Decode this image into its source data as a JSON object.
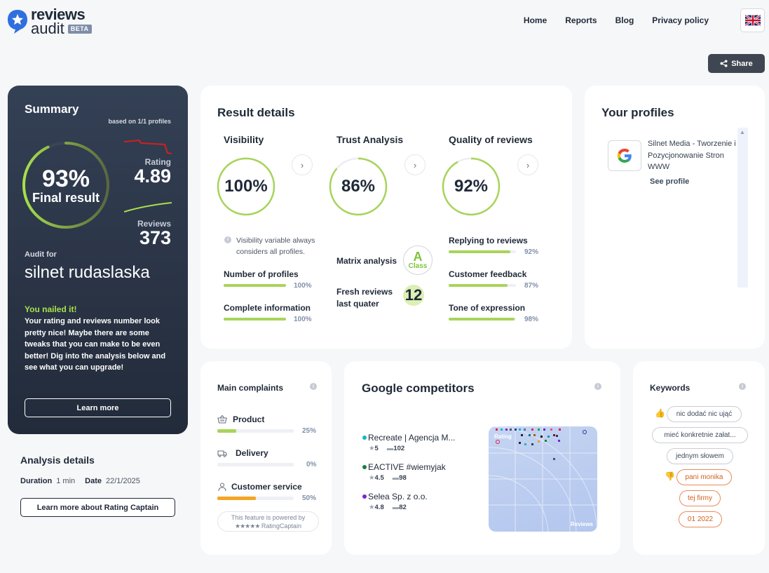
{
  "header": {
    "logo_line1": "reviews",
    "logo_line2": "audit",
    "beta": "BETA",
    "nav": [
      "Home",
      "Reports",
      "Blog",
      "Privacy policy"
    ],
    "share": "Share"
  },
  "summary": {
    "title": "Summary",
    "based_on": "based on 1/1 profiles",
    "final_percent": "93%",
    "final_label": "Final result",
    "final_value": 0.93,
    "rating_label": "Rating",
    "rating_value": "4.89",
    "reviews_label": "Reviews",
    "reviews_value": "373",
    "audit_for_label": "Audit for",
    "audit_name": "silnet rudaslaska",
    "nailed_title": "You nailed it!",
    "nailed_desc": "Your rating and reviews number look pretty nice! Maybe there are some tweaks that you can make to be even better! Dig into the analysis below and see what you can upgrade!",
    "learn_more": "Learn more"
  },
  "analysis": {
    "title": "Analysis details",
    "duration_label": "Duration",
    "duration_value": "1 min",
    "date_label": "Date",
    "date_value": "22/1/2025",
    "button": "Learn more about Rating Captain"
  },
  "results": {
    "title": "Result details",
    "visibility": {
      "title": "Visibility",
      "percent": "100%",
      "value": 1.0,
      "note": "Visibility variable always considers all profiles.",
      "items": [
        {
          "label": "Number of profiles",
          "percent": "100%",
          "value": 1.0
        },
        {
          "label": "Complete information",
          "percent": "100%",
          "value": 1.0
        }
      ]
    },
    "trust": {
      "title": "Trust Analysis",
      "percent": "86%",
      "value": 0.86,
      "matrix_label": "Matrix analysis",
      "class_letter": "A",
      "class_word": "Class",
      "fresh_label_1": "Fresh reviews",
      "fresh_label_2": "last quater",
      "fresh_value": "12"
    },
    "quality": {
      "title": "Quality of reviews",
      "percent": "92%",
      "value": 0.92,
      "items": [
        {
          "label": "Replying to reviews",
          "percent": "92%",
          "value": 0.92
        },
        {
          "label": "Customer feedback",
          "percent": "87%",
          "value": 0.87
        },
        {
          "label": "Tone of expression",
          "percent": "98%",
          "value": 0.98
        }
      ]
    }
  },
  "profiles": {
    "title": "Your profiles",
    "items": [
      {
        "name": "Silnet Media - Tworzenie i Pozycjonowanie Stron WWW",
        "link": "See profile",
        "icon": "google-icon"
      }
    ]
  },
  "complaints": {
    "title": "Main complaints",
    "items": [
      {
        "label": "Product",
        "percent": "25%",
        "value": 0.25,
        "color": "#a8d45a",
        "icon": "basket-icon"
      },
      {
        "label": "Delivery",
        "percent": "0%",
        "value": 0,
        "color": "#a8d45a",
        "icon": "truck-icon"
      },
      {
        "label": "Customer service",
        "percent": "50%",
        "value": 0.5,
        "color": "#f5a524",
        "icon": "person-icon"
      }
    ],
    "powered_1": "This feature is powered by",
    "powered_2": "RatingCaptain"
  },
  "competitors": {
    "title": "Google competitors",
    "items": [
      {
        "name": "Recreate | Agencja M...",
        "rating": "5",
        "reviews": "102",
        "color": "#14b8c4"
      },
      {
        "name": "EACTIVE #wiemyjak",
        "rating": "4.5",
        "reviews": "98",
        "color": "#15803d"
      },
      {
        "name": "Selea Sp. z o.o.",
        "rating": "4.8",
        "reviews": "82",
        "color": "#7e22ce"
      }
    ],
    "map_label_tl": "Rating",
    "map_label_br": "Reviews"
  },
  "keywords": {
    "title": "Keywords",
    "positive": [
      "nic dodać nic ująć",
      "mieć konkretnie załat...",
      "jednym słowem"
    ],
    "negative": [
      "pani monika",
      "tej firmy",
      "01 2022"
    ]
  }
}
